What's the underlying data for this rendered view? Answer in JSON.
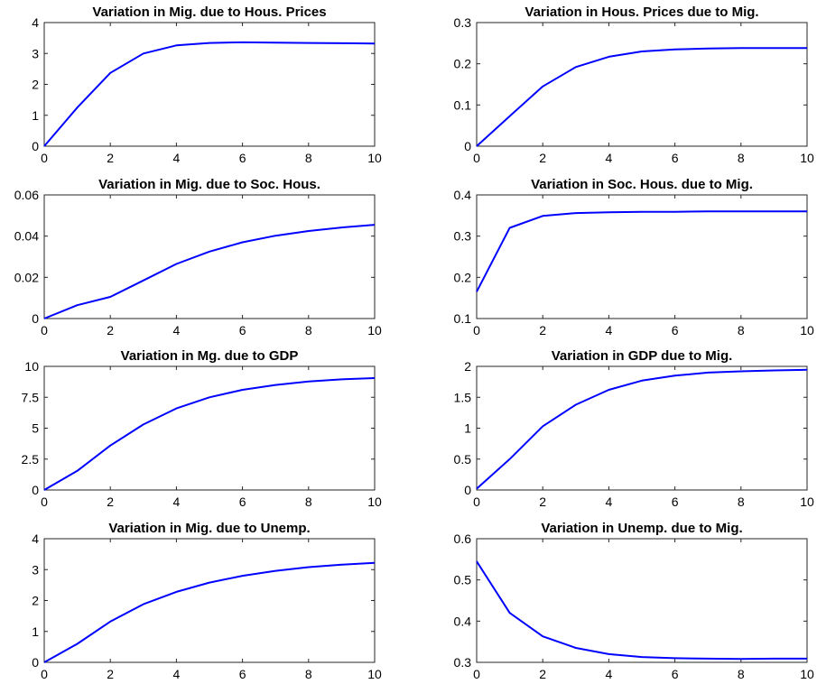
{
  "chart_data": [
    {
      "type": "line",
      "title": "Variation in Mig. due to Hous. Prices",
      "xlim": [
        0,
        10
      ],
      "ylim": [
        0,
        4
      ],
      "xticks": [
        0,
        2,
        4,
        6,
        8,
        10
      ],
      "yticks": [
        0,
        1,
        2,
        3,
        4
      ],
      "xtick_labels": [
        "0",
        "2",
        "4",
        "6",
        "8",
        "10"
      ],
      "ytick_labels": [
        "0",
        "1",
        "2",
        "3",
        "4"
      ],
      "grid": false,
      "series": [
        {
          "color": "#0000ff",
          "x": [
            0,
            1,
            2,
            3,
            4,
            5,
            6,
            7,
            8,
            9,
            10
          ],
          "y": [
            0,
            1.25,
            2.37,
            3.0,
            3.26,
            3.34,
            3.36,
            3.35,
            3.34,
            3.33,
            3.32
          ]
        }
      ]
    },
    {
      "type": "line",
      "title": "Variation in Hous. Prices due to Mig.",
      "xlim": [
        0,
        10
      ],
      "ylim": [
        0,
        0.3
      ],
      "xticks": [
        0,
        2,
        4,
        6,
        8,
        10
      ],
      "yticks": [
        0,
        0.1,
        0.2,
        0.3
      ],
      "xtick_labels": [
        "0",
        "2",
        "4",
        "6",
        "8",
        "10"
      ],
      "ytick_labels": [
        "0",
        "0.1",
        "0.2",
        "0.3"
      ],
      "grid": false,
      "series": [
        {
          "color": "#0000ff",
          "x": [
            0,
            1,
            2,
            3,
            4,
            5,
            6,
            7,
            8,
            9,
            10
          ],
          "y": [
            0,
            0.073,
            0.145,
            0.192,
            0.217,
            0.23,
            0.235,
            0.237,
            0.238,
            0.238,
            0.238
          ]
        }
      ]
    },
    {
      "type": "line",
      "title": "Variation in Mig. due to Soc. Hous.",
      "xlim": [
        0,
        10
      ],
      "ylim": [
        0,
        0.06
      ],
      "xticks": [
        0,
        2,
        4,
        6,
        8,
        10
      ],
      "yticks": [
        0,
        0.02,
        0.04,
        0.06
      ],
      "xtick_labels": [
        "0",
        "2",
        "4",
        "6",
        "8",
        "10"
      ],
      "ytick_labels": [
        "0",
        "0.02",
        "0.04",
        "0.06"
      ],
      "grid": false,
      "series": [
        {
          "color": "#0000ff",
          "x": [
            0,
            1,
            2,
            3,
            4,
            5,
            6,
            7,
            8,
            9,
            10
          ],
          "y": [
            0,
            0.0065,
            0.0105,
            0.0185,
            0.0265,
            0.0325,
            0.037,
            0.0402,
            0.0425,
            0.0442,
            0.0455
          ]
        }
      ]
    },
    {
      "type": "line",
      "title": "Variation in Soc. Hous. due to Mig.",
      "xlim": [
        0,
        10
      ],
      "ylim": [
        0.1,
        0.4
      ],
      "xticks": [
        0,
        2,
        4,
        6,
        8,
        10
      ],
      "yticks": [
        0.1,
        0.2,
        0.3,
        0.4
      ],
      "xtick_labels": [
        "0",
        "2",
        "4",
        "6",
        "8",
        "10"
      ],
      "ytick_labels": [
        "0.1",
        "0.2",
        "0.3",
        "0.4"
      ],
      "grid": false,
      "series": [
        {
          "color": "#0000ff",
          "x": [
            0,
            1,
            2,
            3,
            4,
            5,
            6,
            7,
            8,
            9,
            10
          ],
          "y": [
            0.165,
            0.32,
            0.349,
            0.356,
            0.358,
            0.359,
            0.359,
            0.36,
            0.36,
            0.36,
            0.36
          ]
        }
      ]
    },
    {
      "type": "line",
      "title": "Variation in Mg. due to GDP",
      "xlim": [
        0,
        10
      ],
      "ylim": [
        0,
        10
      ],
      "xticks": [
        0,
        2,
        4,
        6,
        8,
        10
      ],
      "yticks": [
        0,
        2.5,
        5,
        7.5,
        10
      ],
      "xtick_labels": [
        "0",
        "2",
        "4",
        "6",
        "8",
        "10"
      ],
      "ytick_labels": [
        "0",
        "2.5",
        "5",
        "7.5",
        "10"
      ],
      "grid": false,
      "series": [
        {
          "color": "#0000ff",
          "x": [
            0,
            1,
            2,
            3,
            4,
            5,
            6,
            7,
            8,
            9,
            10
          ],
          "y": [
            0,
            1.55,
            3.6,
            5.3,
            6.6,
            7.5,
            8.1,
            8.5,
            8.78,
            8.95,
            9.05
          ]
        }
      ]
    },
    {
      "type": "line",
      "title": "Variation in GDP due to Mig.",
      "xlim": [
        0,
        10
      ],
      "ylim": [
        0,
        2
      ],
      "xticks": [
        0,
        2,
        4,
        6,
        8,
        10
      ],
      "yticks": [
        0,
        0.5,
        1,
        1.5,
        2
      ],
      "xtick_labels": [
        "0",
        "2",
        "4",
        "6",
        "8",
        "10"
      ],
      "ytick_labels": [
        "0",
        "0.5",
        "1",
        "1.5",
        "2"
      ],
      "grid": false,
      "series": [
        {
          "color": "#0000ff",
          "x": [
            0,
            1,
            2,
            3,
            4,
            5,
            6,
            7,
            8,
            9,
            10
          ],
          "y": [
            0.02,
            0.5,
            1.03,
            1.38,
            1.62,
            1.77,
            1.85,
            1.9,
            1.92,
            1.935,
            1.945
          ]
        }
      ]
    },
    {
      "type": "line",
      "title": "Variation in Mig. due to Unemp.",
      "xlim": [
        0,
        10
      ],
      "ylim": [
        0,
        4
      ],
      "xticks": [
        0,
        2,
        4,
        6,
        8,
        10
      ],
      "yticks": [
        0,
        1,
        2,
        3,
        4
      ],
      "xtick_labels": [
        "0",
        "2",
        "4",
        "6",
        "8",
        "10"
      ],
      "ytick_labels": [
        "0",
        "1",
        "2",
        "3",
        "4"
      ],
      "grid": false,
      "series": [
        {
          "color": "#0000ff",
          "x": [
            0,
            1,
            2,
            3,
            4,
            5,
            6,
            7,
            8,
            9,
            10
          ],
          "y": [
            0,
            0.6,
            1.32,
            1.88,
            2.28,
            2.58,
            2.8,
            2.96,
            3.08,
            3.16,
            3.22
          ]
        }
      ]
    },
    {
      "type": "line",
      "title": "Variation in Unemp. due to Mig.",
      "xlim": [
        0,
        10
      ],
      "ylim": [
        0.3,
        0.6
      ],
      "xticks": [
        0,
        2,
        4,
        6,
        8,
        10
      ],
      "yticks": [
        0.3,
        0.4,
        0.5,
        0.6
      ],
      "xtick_labels": [
        "0",
        "2",
        "4",
        "6",
        "8",
        "10"
      ],
      "ytick_labels": [
        "0.3",
        "0.4",
        "0.5",
        "0.6"
      ],
      "grid": false,
      "series": [
        {
          "color": "#0000ff",
          "x": [
            0,
            1,
            2,
            3,
            4,
            5,
            6,
            7,
            8,
            9,
            10
          ],
          "y": [
            0.545,
            0.42,
            0.363,
            0.335,
            0.32,
            0.313,
            0.31,
            0.309,
            0.308,
            0.309,
            0.309
          ]
        }
      ]
    }
  ]
}
